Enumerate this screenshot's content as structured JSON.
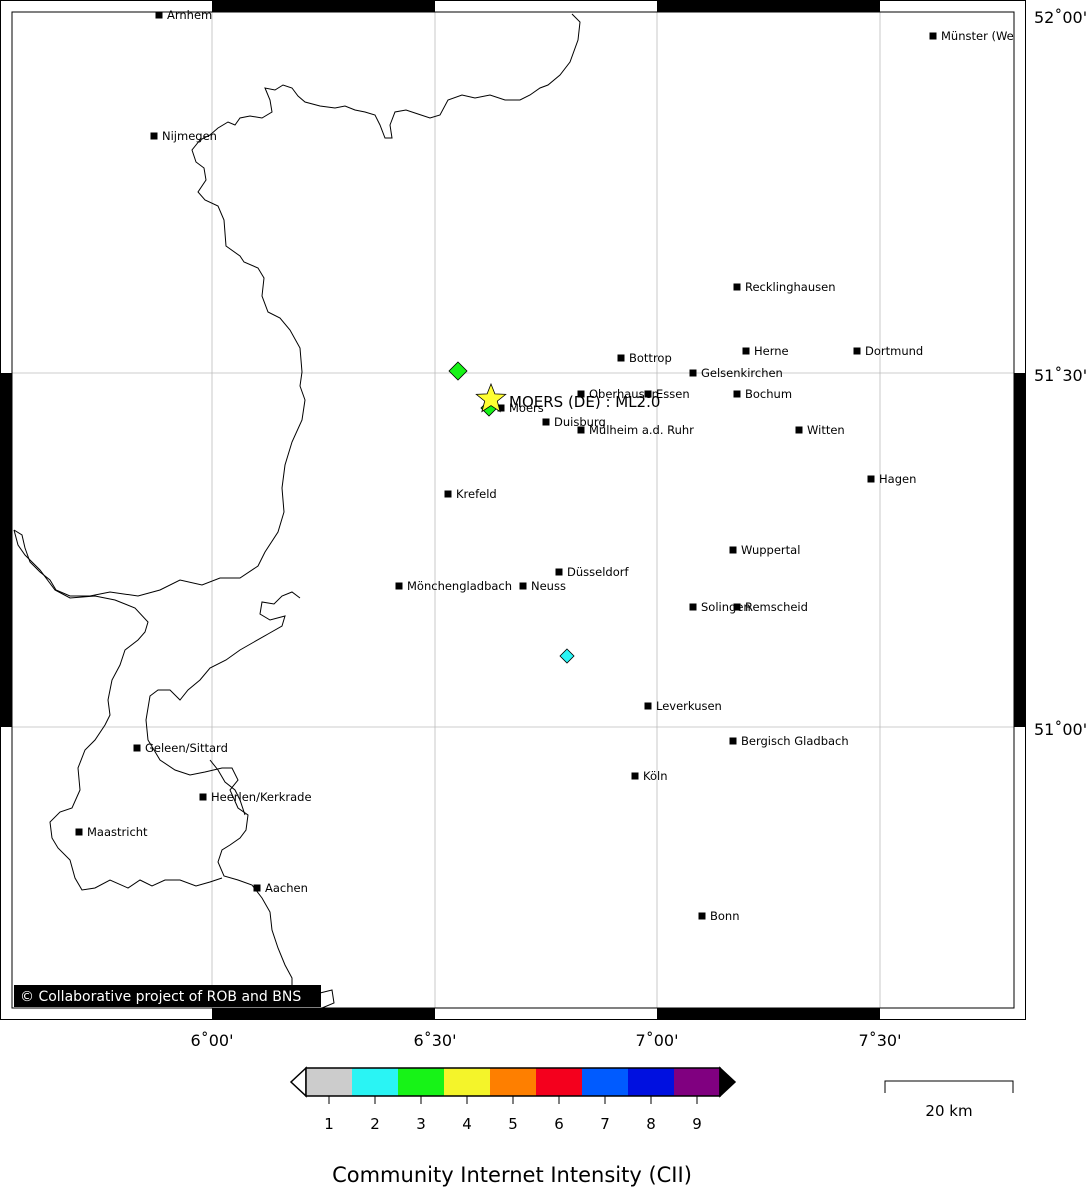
{
  "map": {
    "epicenter_label": "MOERS (DE) : ML2.0",
    "copyright": "© Collaborative project of ROB and BNS",
    "lon_labels": [
      "6˚00'",
      "6˚30'",
      "7˚00'",
      "7˚30'"
    ],
    "lat_labels": [
      "52˚00'",
      "51˚30'",
      "51˚00'"
    ],
    "scale_label": "20 km",
    "cities": [
      {
        "name": "Arnhem"
      },
      {
        "name": "Münster (We"
      },
      {
        "name": "Nijmegen"
      },
      {
        "name": "Recklinghausen"
      },
      {
        "name": "Bottrop"
      },
      {
        "name": "Herne"
      },
      {
        "name": "Dortmund"
      },
      {
        "name": "Gelsenkirchen"
      },
      {
        "name": "Oberhausen"
      },
      {
        "name": "Essen"
      },
      {
        "name": "Bochum"
      },
      {
        "name": "Moers"
      },
      {
        "name": "Duisburg"
      },
      {
        "name": "Mülheim a.d. Ruhr"
      },
      {
        "name": "Witten"
      },
      {
        "name": "Hagen"
      },
      {
        "name": "Krefeld"
      },
      {
        "name": "Wuppertal"
      },
      {
        "name": "Düsseldorf"
      },
      {
        "name": "Mönchengladbach"
      },
      {
        "name": "Neuss"
      },
      {
        "name": "Solingen"
      },
      {
        "name": "Remscheid"
      },
      {
        "name": "Leverkusen"
      },
      {
        "name": "Geleen/Sittard"
      },
      {
        "name": "Bergisch Gladbach"
      },
      {
        "name": "Köln"
      },
      {
        "name": "Heerlen/Kerkrade"
      },
      {
        "name": "Maastricht"
      },
      {
        "name": "Aachen"
      },
      {
        "name": "Bonn"
      }
    ],
    "observations": [
      {
        "intensity": 3,
        "color": "#17f317"
      },
      {
        "intensity": 3,
        "color": "#17f317"
      },
      {
        "intensity": 2,
        "color": "#2af4f4"
      }
    ]
  },
  "colorbar": {
    "title": "Community Internet Intensity (CII)",
    "levels": [
      {
        "label": "1",
        "color": "#cccccc"
      },
      {
        "label": "2",
        "color": "#2af4f4"
      },
      {
        "label": "3",
        "color": "#17f317"
      },
      {
        "label": "4",
        "color": "#f4f42a"
      },
      {
        "label": "5",
        "color": "#fe7f00"
      },
      {
        "label": "6",
        "color": "#f4001d"
      },
      {
        "label": "7",
        "color": "#005bff"
      },
      {
        "label": "8",
        "color": "#0010e0"
      },
      {
        "label": "9",
        "color": "#800080"
      }
    ]
  }
}
